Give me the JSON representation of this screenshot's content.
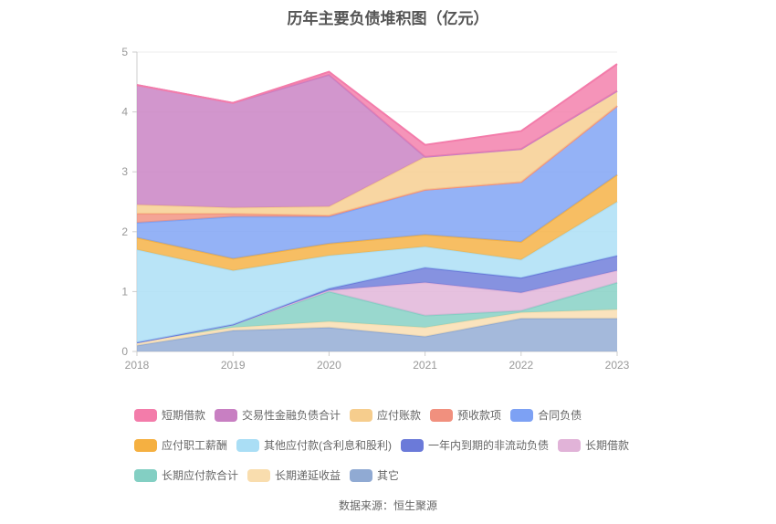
{
  "title": "历年主要负债堆积图（亿元）",
  "footer": "数据来源：恒生聚源",
  "chart_data": {
    "type": "area",
    "stacked": true,
    "title": "历年主要负债堆积图（亿元）",
    "x": [
      "2018",
      "2019",
      "2020",
      "2021",
      "2022",
      "2023"
    ],
    "xlabel": "",
    "ylabel": "",
    "ylim": [
      0,
      5
    ],
    "yticks": [
      0,
      1,
      2,
      3,
      4,
      5
    ],
    "grid": true,
    "legend_position": "bottom",
    "axis_color": "#cccccc",
    "grid_color": "#eeeeee",
    "tick_label_color": "#999999",
    "series": [
      {
        "name": "短期借款",
        "color": "#f37caa",
        "values": [
          0,
          0,
          0.05,
          0.2,
          0.3,
          0.45
        ]
      },
      {
        "name": "交易性金融负债合计",
        "color": "#c87fc2",
        "values": [
          2.0,
          1.75,
          2.2,
          0,
          0,
          0
        ]
      },
      {
        "name": "应付账款",
        "color": "#f6cd8d",
        "values": [
          0.15,
          0.1,
          0.15,
          0.55,
          0.55,
          0.25
        ]
      },
      {
        "name": "预收款项",
        "color": "#f1907e",
        "values": [
          0.15,
          0.05,
          0.02,
          0,
          0,
          0
        ]
      },
      {
        "name": "合同负债",
        "color": "#7da1f4",
        "values": [
          0.25,
          0.7,
          0.45,
          0.75,
          1.0,
          1.15
        ]
      },
      {
        "name": "应付职工薪酬",
        "color": "#f5b041",
        "values": [
          0.2,
          0.2,
          0.2,
          0.2,
          0.3,
          0.45
        ]
      },
      {
        "name": "其他应付款(含利息和股利)",
        "color": "#aadef5",
        "values": [
          1.55,
          0.9,
          0.55,
          0.35,
          0.3,
          0.9
        ]
      },
      {
        "name": "一年内到期的非流动负债",
        "color": "#6b7ad9",
        "values": [
          0,
          0,
          0.03,
          0.25,
          0.25,
          0.25
        ]
      },
      {
        "name": "长期借款",
        "color": "#e1b3d8",
        "values": [
          0,
          0,
          0.02,
          0.55,
          0.3,
          0.2
        ]
      },
      {
        "name": "长期应付款合计",
        "color": "#83cfc3",
        "values": [
          0,
          0.05,
          0.5,
          0.2,
          0.03,
          0.45
        ]
      },
      {
        "name": "长期递延收益",
        "color": "#f9ddae",
        "values": [
          0.05,
          0.05,
          0.1,
          0.15,
          0.1,
          0.15
        ]
      },
      {
        "name": "其它",
        "color": "#90aad3",
        "values": [
          0.1,
          0.35,
          0.4,
          0.25,
          0.55,
          0.55
        ]
      }
    ]
  }
}
